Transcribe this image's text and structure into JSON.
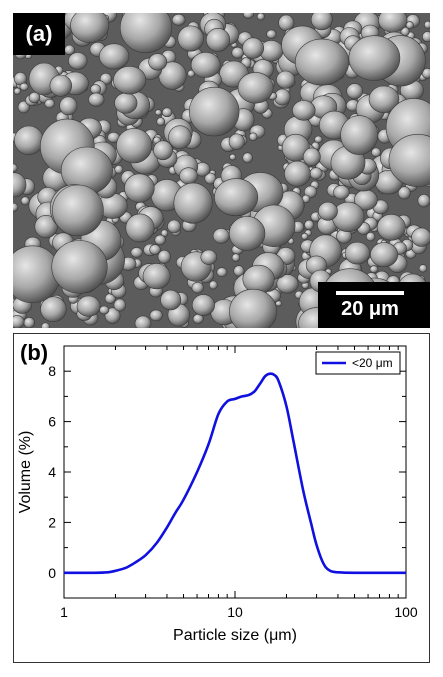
{
  "panels": {
    "a": {
      "label": "(a)",
      "scale_bar": "20 μm"
    },
    "b": {
      "label": "(b)"
    }
  },
  "chart_data": {
    "type": "line",
    "xlabel": "Particle size (μm)",
    "ylabel": "Volume   (%)",
    "xscale": "log",
    "xlim": [
      1,
      100
    ],
    "ylim": [
      -1,
      9
    ],
    "xticks": [
      1,
      10,
      100
    ],
    "yticks": [
      0,
      2,
      4,
      6,
      8
    ],
    "grid": false,
    "legend_position": "top-right",
    "series": [
      {
        "name": "<20 μm",
        "color": "#1010e0",
        "x": [
          1,
          1.5,
          1.8,
          2,
          2.3,
          2.6,
          3,
          3.5,
          4,
          4.5,
          5,
          6,
          7,
          8,
          9,
          10,
          11,
          12,
          13,
          14,
          15,
          16,
          17,
          18,
          20,
          22,
          25,
          28,
          30,
          33,
          36,
          40,
          50,
          100
        ],
        "y": [
          0,
          0,
          0.02,
          0.08,
          0.2,
          0.4,
          0.7,
          1.2,
          1.8,
          2.4,
          2.9,
          4.0,
          5.1,
          6.3,
          6.8,
          6.9,
          7.0,
          7.05,
          7.2,
          7.5,
          7.8,
          7.9,
          7.85,
          7.6,
          6.6,
          5.2,
          3.3,
          1.9,
          1.1,
          0.35,
          0.08,
          0.02,
          0,
          0
        ]
      }
    ]
  }
}
